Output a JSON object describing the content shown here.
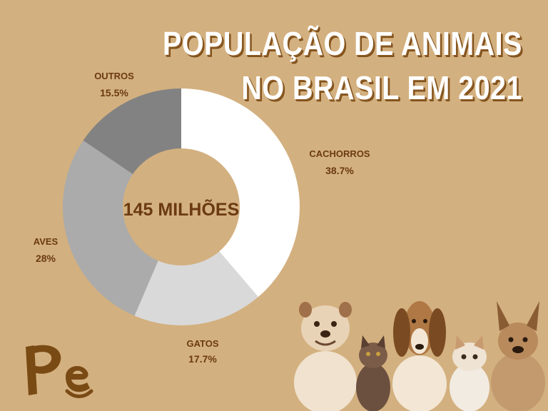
{
  "title": {
    "line1": "POPULAÇÃO DE ANIMAIS",
    "line2": "NO BRASIL EM 2021"
  },
  "center_label": "145 MILHÕES",
  "chart_data": {
    "type": "pie",
    "title": "POPULAÇÃO DE ANIMAIS NO BRASIL EM 2021",
    "center_text": "145 MILHÕES",
    "slices": [
      {
        "label": "CACHORROS",
        "value": 38.7,
        "value_text": "38.7%",
        "color": "#ffffff"
      },
      {
        "label": "GATOS",
        "value": 17.7,
        "value_text": "17.7%",
        "color": "#d9d9d9"
      },
      {
        "label": "AVES",
        "value": 28,
        "value_text": "28%",
        "color": "#ababab"
      },
      {
        "label": "OUTROS",
        "value": 15.5,
        "value_text": "15.5%",
        "color": "#828282"
      }
    ]
  },
  "colors": {
    "background": "#d3b07f",
    "label_text": "#6b3a12",
    "title_text": "#ffffff",
    "title_shadow": "#8b5a22"
  },
  "logo": {
    "text": "Pe",
    "icon": "brand-logo-pe"
  }
}
